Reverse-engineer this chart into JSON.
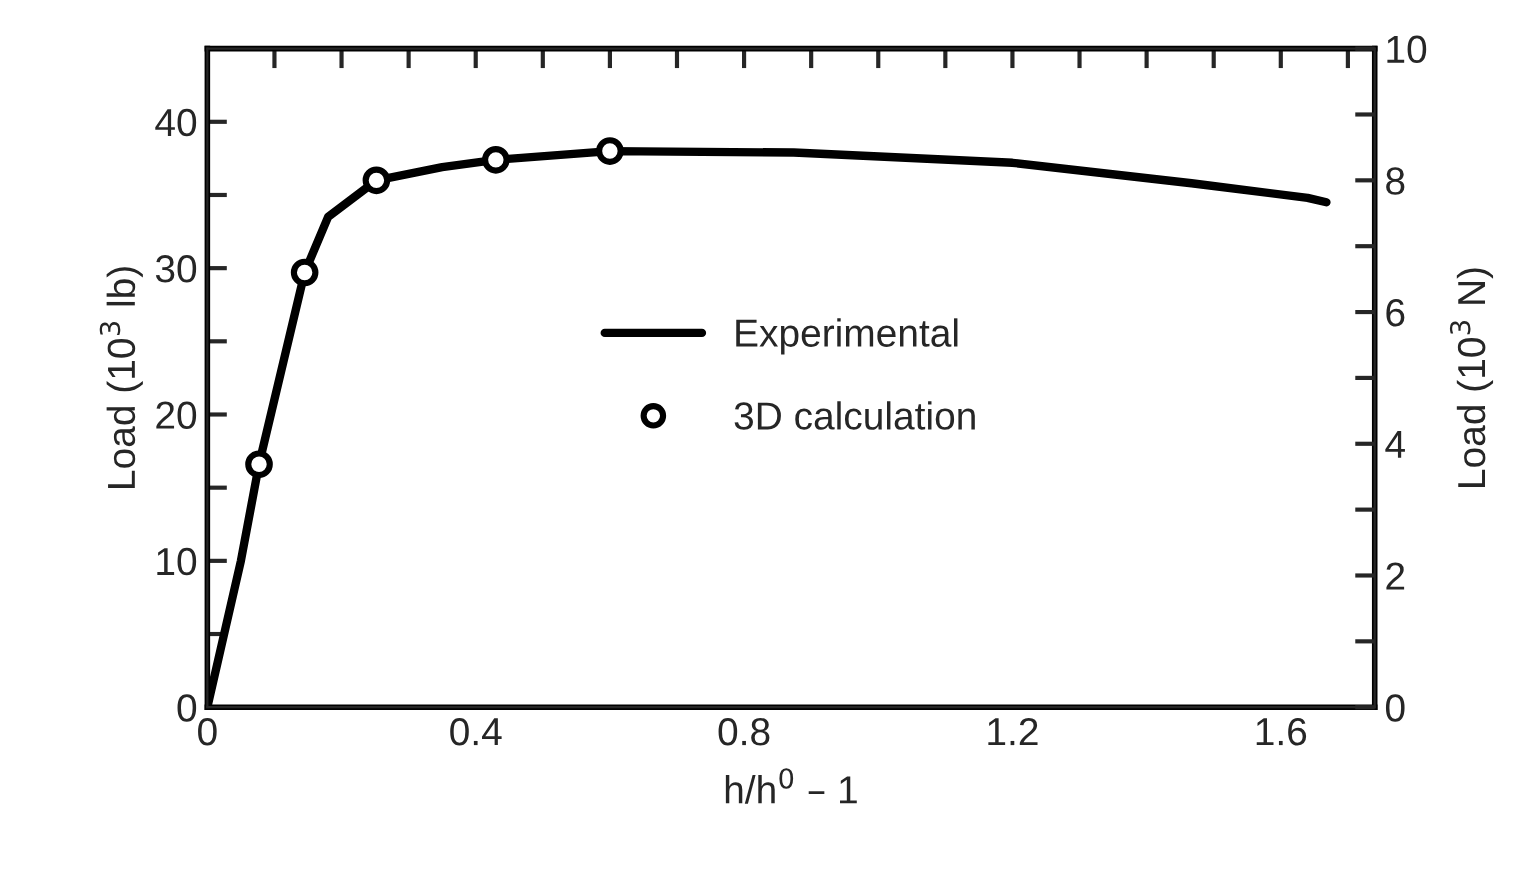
{
  "chart_data": {
    "type": "line",
    "xlabel": "h/h$^{0}$ – 1",
    "ylabel": "Load (10$^{3}$ lb)",
    "y2label": "Load (10$^{3}$ N)",
    "xlim": [
      0,
      1.74
    ],
    "ylim": [
      0,
      45
    ],
    "y2lim": [
      0,
      10
    ],
    "xticks": [
      0,
      {
        "value": 0.1,
        "label": null
      },
      {
        "value": 0.2,
        "label": null
      },
      {
        "value": 0.3,
        "label": null
      },
      0.4,
      {
        "value": 0.5,
        "label": null
      },
      {
        "value": 0.6,
        "label": null
      },
      {
        "value": 0.7,
        "label": null
      },
      0.8,
      {
        "value": 0.9,
        "label": null
      },
      {
        "value": 1.0,
        "label": null
      },
      {
        "value": 1.1,
        "label": null
      },
      1.2,
      {
        "value": 1.3,
        "label": null
      },
      {
        "value": 1.4,
        "label": null
      },
      {
        "value": 1.5,
        "label": null
      },
      1.6,
      {
        "value": 1.7,
        "label": null
      }
    ],
    "yticks": [
      0,
      {
        "value": 5,
        "label": null
      },
      10,
      {
        "value": 15,
        "label": null
      },
      20,
      {
        "value": 25,
        "label": null
      },
      30,
      {
        "value": 35,
        "label": null
      },
      40
    ],
    "y2ticks": [
      0,
      {
        "value": 1,
        "label": null
      },
      2,
      {
        "value": 3,
        "label": null
      },
      4,
      {
        "value": 5,
        "label": null
      },
      6,
      {
        "value": 7,
        "label": null
      },
      8,
      {
        "value": 9,
        "label": null
      },
      10
    ],
    "grid": false,
    "legend": "center",
    "series": [
      {
        "name": "Experimental",
        "color": "#000000",
        "marker": "none",
        "line_style": "solid",
        "x": [
          0,
          0.02,
          0.05,
          0.077,
          0.145,
          0.18,
          0.252,
          0.35,
          0.43,
          0.6,
          0.874,
          1.2,
          1.467,
          1.64,
          1.668
        ],
        "values": [
          0,
          4,
          10,
          16.6,
          29.7,
          33.5,
          36.0,
          36.9,
          37.4,
          38.0,
          37.9,
          37.2,
          35.8,
          34.8,
          34.5
        ]
      },
      {
        "name": "3D calculation",
        "type": "scatter",
        "color": "#000000",
        "marker": "circle",
        "x": [
          0.077,
          0.145,
          0.252,
          0.43,
          0.6
        ],
        "values": [
          16.6,
          29.7,
          36.0,
          37.4,
          38.0
        ]
      }
    ]
  }
}
